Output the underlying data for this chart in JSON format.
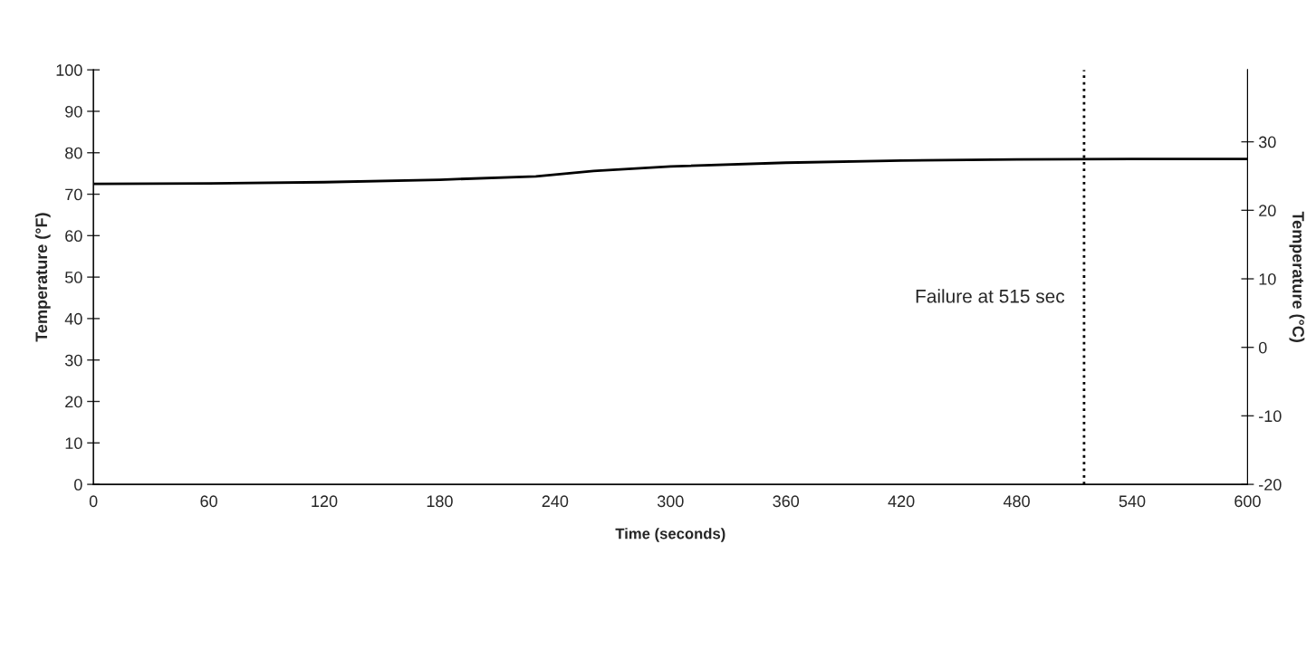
{
  "chart_data": {
    "type": "line",
    "xlabel": "Time (seconds)",
    "ylabel": "Temperature (°F)",
    "y2label": "Temperature (°C)",
    "x": [
      0,
      60,
      120,
      180,
      230,
      260,
      300,
      360,
      420,
      480,
      540,
      600
    ],
    "series": [
      {
        "color": "#000000",
        "values": [
          72.5,
          72.6,
          72.9,
          73.5,
          74.3,
          75.6,
          76.7,
          77.6,
          78.1,
          78.4,
          78.5,
          78.5
        ]
      }
    ],
    "xlim": [
      0,
      600
    ],
    "xticks": [
      0,
      60,
      120,
      180,
      240,
      300,
      360,
      420,
      480,
      540,
      600
    ],
    "ylim": [
      0,
      100
    ],
    "yticks": [
      0,
      10,
      20,
      30,
      40,
      50,
      60,
      70,
      80,
      90,
      100
    ],
    "y2lim": [
      -20,
      40.5
    ],
    "y2ticks": [
      -20,
      -10,
      0,
      10,
      20,
      30
    ],
    "ref_lines": [
      {
        "axis": "x",
        "value": 515,
        "label": "Failure at 515 sec",
        "color": "#000000",
        "line_style": "dotted"
      }
    ],
    "grid": false,
    "legend": false,
    "marker": "none",
    "line_style": "solid"
  }
}
